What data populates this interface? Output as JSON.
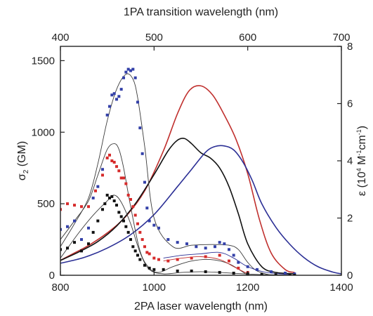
{
  "chart_data": {
    "type": "line",
    "xlabel": "2PA laser wavelength (nm)",
    "x2label": "1PA transition wavelength (nm)",
    "ylabel_left": {
      "main": "σ",
      "sub": "2",
      "rest": " (GM)"
    },
    "ylabel_right": {
      "main": "ε (10",
      "sup1": "4",
      "mid1": " M",
      "sup2": "-1",
      "mid2": "cm",
      "sup3": "-1",
      "end": ")"
    },
    "xlim": [
      800,
      1400
    ],
    "x2lim": [
      400,
      700
    ],
    "ylim_left": [
      0,
      1600
    ],
    "ylim_right": [
      0,
      8
    ],
    "x_ticks": [
      "800",
      "1000",
      "1200",
      "1400"
    ],
    "x2_ticks": [
      "400",
      "500",
      "600",
      "700"
    ],
    "y_left_ticks": [
      "0",
      "500",
      "1000",
      "1500"
    ],
    "y_right_ticks": [
      "0",
      "2",
      "4",
      "6",
      "8"
    ],
    "grid": false,
    "line_series": [
      {
        "color": "#c0302e",
        "axis": "right",
        "x": [
          800,
          830,
          860,
          900,
          940,
          980,
          1020,
          1050,
          1075,
          1100,
          1125,
          1150,
          1175,
          1200,
          1225,
          1250,
          1280,
          1300
        ],
        "y": [
          0.52,
          0.78,
          1.04,
          1.48,
          2.06,
          2.95,
          4.35,
          5.65,
          6.45,
          6.62,
          6.3,
          5.6,
          4.75,
          3.55,
          1.95,
          0.78,
          0.2,
          0.1
        ]
      },
      {
        "color": "#111111",
        "axis": "right",
        "x": [
          800,
          840,
          880,
          920,
          960,
          1000,
          1030,
          1050,
          1065,
          1080,
          1100,
          1120,
          1140,
          1160,
          1180,
          1200,
          1230,
          1260,
          1300
        ],
        "y": [
          0.52,
          0.82,
          1.18,
          1.72,
          2.5,
          3.52,
          4.35,
          4.72,
          4.78,
          4.6,
          4.28,
          4.1,
          3.75,
          3.1,
          2.15,
          1.1,
          0.3,
          0.1,
          0.05
        ]
      },
      {
        "color": "#2b2f95",
        "axis": "right",
        "x": [
          800,
          850,
          900,
          950,
          1000,
          1050,
          1080,
          1110,
          1130,
          1150,
          1170,
          1190,
          1210,
          1230,
          1260,
          1290,
          1320,
          1350,
          1380,
          1400
        ],
        "y": [
          0.42,
          0.62,
          0.95,
          1.42,
          2.12,
          3.1,
          3.7,
          4.3,
          4.5,
          4.52,
          4.38,
          3.95,
          3.3,
          2.5,
          1.68,
          1.08,
          0.62,
          0.3,
          0.12,
          0.05
        ]
      },
      {
        "color": "#3a3a3a",
        "axis": "left",
        "x": [
          800,
          830,
          860,
          880,
          900,
          920,
          940,
          955,
          965,
          980,
          1000,
          1040,
          1080,
          1120,
          1160,
          1180,
          1200,
          1220,
          1250
        ],
        "y": [
          200,
          360,
          540,
          780,
          1080,
          1300,
          1405,
          1370,
          1240,
          900,
          400,
          200,
          210,
          215,
          210,
          180,
          90,
          30,
          0
        ]
      },
      {
        "color": "#3a3a3a",
        "axis": "left",
        "x": [
          800,
          830,
          860,
          880,
          900,
          915,
          925,
          935,
          950,
          970,
          990,
          1010,
          1040,
          1080,
          1120,
          1160,
          1200
        ],
        "y": [
          250,
          380,
          520,
          700,
          880,
          920,
          880,
          750,
          480,
          170,
          50,
          20,
          60,
          100,
          110,
          80,
          0
        ]
      },
      {
        "color": "#3a3a3a",
        "axis": "left",
        "x": [
          800,
          840,
          870,
          900,
          915,
          930,
          950,
          970,
          990,
          1020,
          1060,
          1100,
          1140,
          1180,
          1220,
          1260,
          1300
        ],
        "y": [
          120,
          300,
          420,
          520,
          560,
          510,
          360,
          160,
          40,
          10,
          20,
          25,
          20,
          12,
          6,
          3,
          0
        ]
      },
      {
        "color": "#c0302e",
        "axis": "left",
        "x": [
          1020,
          1060,
          1100,
          1140,
          1170,
          1200
        ],
        "y": [
          100,
          120,
          130,
          110,
          60,
          10
        ]
      },
      {
        "color": "#2b2f95",
        "axis": "left",
        "x": [
          1020,
          1060,
          1100,
          1140,
          1170,
          1200,
          1240,
          1290
        ],
        "y": [
          120,
          140,
          150,
          160,
          120,
          60,
          20,
          5
        ]
      }
    ],
    "scatter_series": [
      {
        "color": "#3340a8",
        "x": [
          800,
          815,
          830,
          845,
          860,
          870,
          880,
          890,
          900,
          905,
          910,
          915,
          920,
          925,
          930,
          935,
          940,
          945,
          950,
          955,
          960,
          965,
          970,
          975,
          980,
          985,
          990,
          1000,
          1010,
          1030,
          1050,
          1070,
          1090,
          1110,
          1130,
          1140,
          1150,
          1160,
          1170,
          1180,
          1200,
          1220,
          1250,
          1280,
          1300
        ],
        "y": [
          320,
          340,
          380,
          250,
          330,
          540,
          620,
          740,
          1120,
          1180,
          1260,
          1270,
          1230,
          1250,
          1300,
          1380,
          1420,
          1440,
          1430,
          1440,
          1380,
          1210,
          1030,
          850,
          650,
          470,
          380,
          350,
          330,
          250,
          230,
          220,
          200,
          190,
          200,
          230,
          220,
          180,
          140,
          90,
          60,
          40,
          25,
          15,
          10
        ]
      },
      {
        "color": "#d62b2b",
        "x": [
          800,
          815,
          830,
          845,
          860,
          875,
          890,
          900,
          905,
          910,
          915,
          920,
          925,
          930,
          935,
          940,
          945,
          950,
          955,
          960,
          965,
          970,
          975,
          980,
          985,
          990,
          1000,
          1010,
          1030,
          1050,
          1080,
          1110,
          1140,
          1160,
          1180,
          1200
        ],
        "y": [
          460,
          500,
          490,
          480,
          480,
          590,
          700,
          820,
          840,
          800,
          790,
          760,
          730,
          680,
          680,
          640,
          560,
          530,
          480,
          420,
          360,
          300,
          250,
          200,
          160,
          150,
          120,
          110,
          100,
          110,
          120,
          130,
          140,
          100,
          50,
          20
        ]
      },
      {
        "color": "#111111",
        "x": [
          800,
          815,
          830,
          845,
          860,
          870,
          880,
          890,
          895,
          900,
          905,
          910,
          915,
          920,
          925,
          930,
          935,
          940,
          945,
          950,
          955,
          960,
          965,
          970,
          980,
          990,
          1000,
          1020,
          1050,
          1080,
          1110,
          1140,
          1170,
          1200,
          1230,
          1260,
          1290,
          1300
        ],
        "y": [
          180,
          190,
          230,
          170,
          220,
          300,
          380,
          460,
          500,
          560,
          540,
          550,
          520,
          490,
          440,
          410,
          380,
          340,
          300,
          250,
          200,
          170,
          140,
          110,
          70,
          50,
          40,
          40,
          30,
          30,
          25,
          20,
          15,
          10,
          6,
          4,
          2,
          0
        ]
      }
    ]
  }
}
